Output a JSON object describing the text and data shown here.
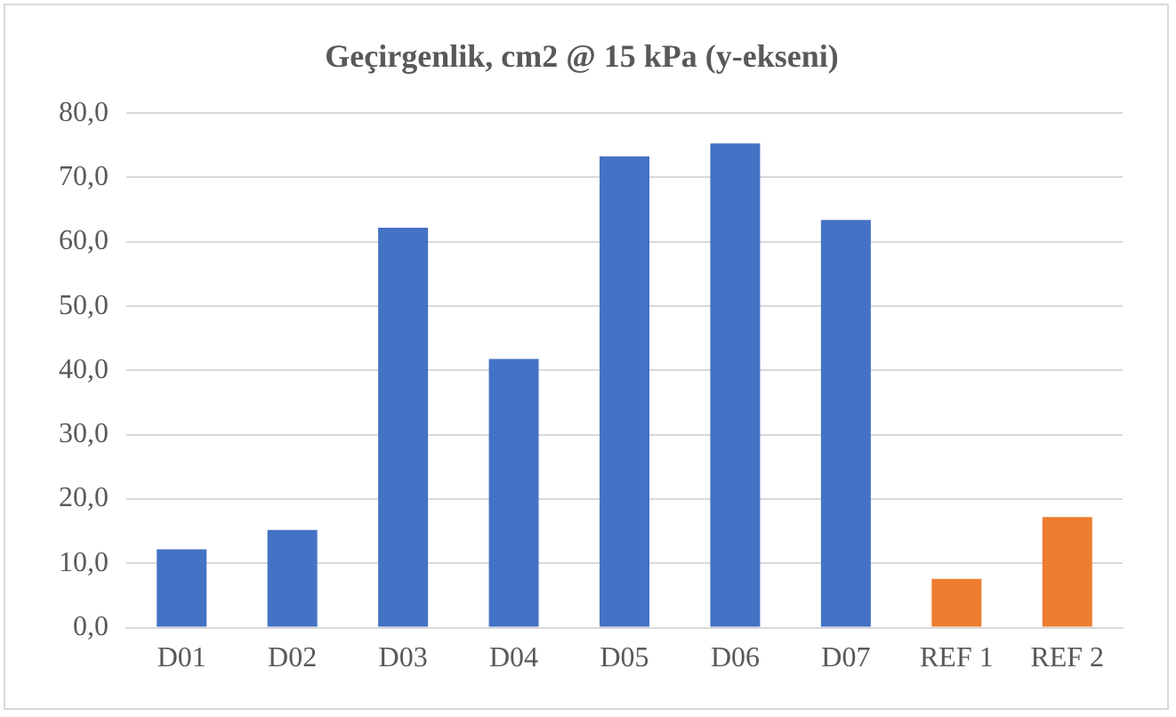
{
  "chart_data": {
    "type": "bar",
    "title": "Geçirgenlik, cm2 @ 15 kPa (y-ekseni)",
    "categories": [
      "D01",
      "D02",
      "D03",
      "D04",
      "D05",
      "D06",
      "D07",
      "REF 1",
      "REF 2"
    ],
    "values": [
      12.2,
      15.2,
      62.2,
      41.8,
      73.3,
      75.3,
      63.4,
      7.6,
      17.2
    ],
    "colors": [
      "#4472c4",
      "#4472c4",
      "#4472c4",
      "#4472c4",
      "#4472c4",
      "#4472c4",
      "#4472c4",
      "#ed7d31",
      "#ed7d31"
    ],
    "ylim": [
      0,
      80
    ],
    "yticks": [
      {
        "value": 0,
        "label": "0,0"
      },
      {
        "value": 10,
        "label": "10,0"
      },
      {
        "value": 20,
        "label": "20,0"
      },
      {
        "value": 30,
        "label": "30,0"
      },
      {
        "value": 40,
        "label": "40,0"
      },
      {
        "value": 50,
        "label": "50,0"
      },
      {
        "value": 60,
        "label": "60,0"
      },
      {
        "value": 70,
        "label": "70,0"
      },
      {
        "value": 80,
        "label": "80,0"
      }
    ],
    "grid": "y"
  }
}
